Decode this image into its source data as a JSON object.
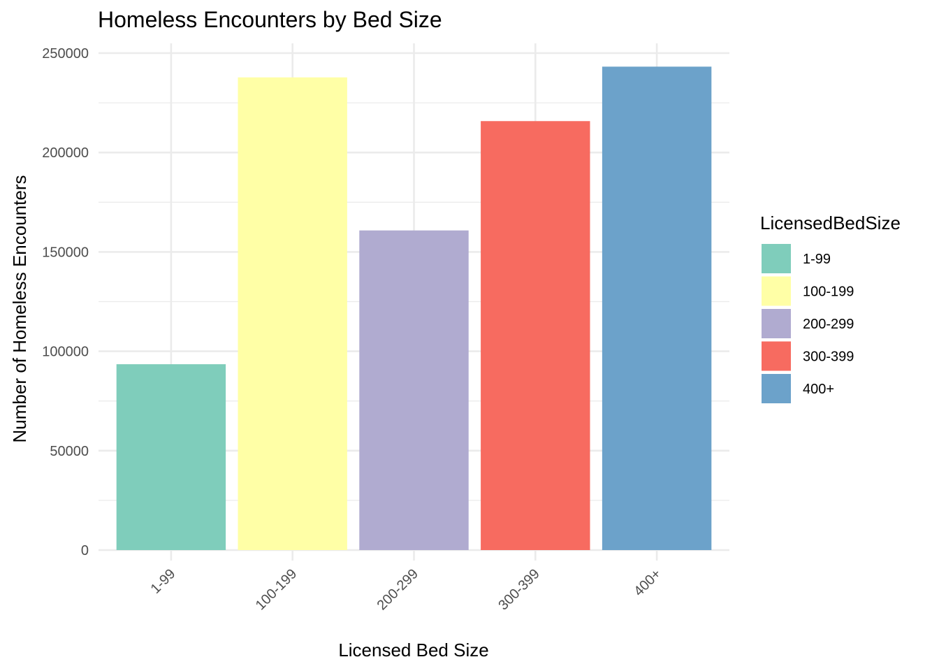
{
  "chart_data": {
    "type": "bar",
    "title": "Homeless Encounters by Bed Size",
    "xlabel": "Licensed Bed Size",
    "ylabel": "Number of Homeless Encounters",
    "categories": [
      "1-99",
      "100-199",
      "200-299",
      "300-399",
      "400+"
    ],
    "values": [
      93500,
      237800,
      160800,
      215800,
      243200
    ],
    "colors": [
      "#7fcdbb",
      "#ffffa6",
      "#b0abd0",
      "#f76b60",
      "#6ca2ca"
    ],
    "ylim": [
      0,
      250000
    ],
    "yticks": [
      0,
      50000,
      100000,
      150000,
      200000,
      250000
    ],
    "ytick_labels": [
      "0",
      "50000",
      "100000",
      "150000",
      "200000",
      "250000"
    ],
    "grid": true,
    "legend": {
      "title": "LicensedBedSize",
      "position": "right",
      "entries": [
        "1-99",
        "100-199",
        "200-299",
        "300-399",
        "400+"
      ]
    }
  }
}
